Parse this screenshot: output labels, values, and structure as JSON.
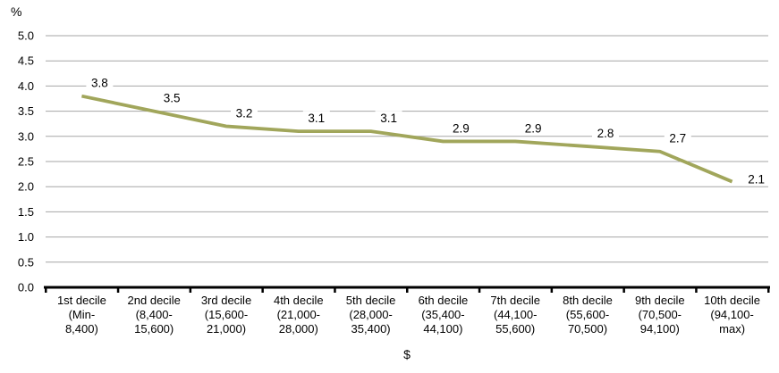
{
  "chart_data": {
    "type": "line",
    "ylabel": "%",
    "xlabel": "$",
    "ylim": [
      0,
      5
    ],
    "ytick_step": 0.5,
    "yticks": [
      "0.0",
      "0.5",
      "1.0",
      "1.5",
      "2.0",
      "2.5",
      "3.0",
      "3.5",
      "4.0",
      "4.5",
      "5.0"
    ],
    "categories": [
      [
        "1st decile",
        "(Min-",
        "8,400)"
      ],
      [
        "2nd decile",
        "(8,400-",
        "15,600)"
      ],
      [
        "3rd decile",
        "(15,600-",
        "21,000)"
      ],
      [
        "4th decile",
        "(21,000-",
        "28,000)"
      ],
      [
        "5th decile",
        "(28,000-",
        "35,400)"
      ],
      [
        "6th decile",
        "(35,400-",
        "44,100)"
      ],
      [
        "7th decile",
        "(44,100-",
        "55,600)"
      ],
      [
        "8th decile",
        "(55,600-",
        "70,500)"
      ],
      [
        "9th decile",
        "(70,500-",
        "94,100)"
      ],
      [
        "10th decile",
        "(94,100-",
        "max)"
      ]
    ],
    "values": [
      3.8,
      3.5,
      3.2,
      3.1,
      3.1,
      2.9,
      2.9,
      2.8,
      2.7,
      2.1
    ],
    "value_labels": [
      "3.8",
      "3.5",
      "3.2",
      "3.1",
      "3.1",
      "2.9",
      "2.9",
      "2.8",
      "2.7",
      "2.1"
    ],
    "grid": "horizontal",
    "legend": "none",
    "colors": {
      "line": "#A1A65B",
      "gridline": "#A6A6A6",
      "axis": "#000000",
      "text": "#000000",
      "background": "#FFFFFF"
    }
  }
}
